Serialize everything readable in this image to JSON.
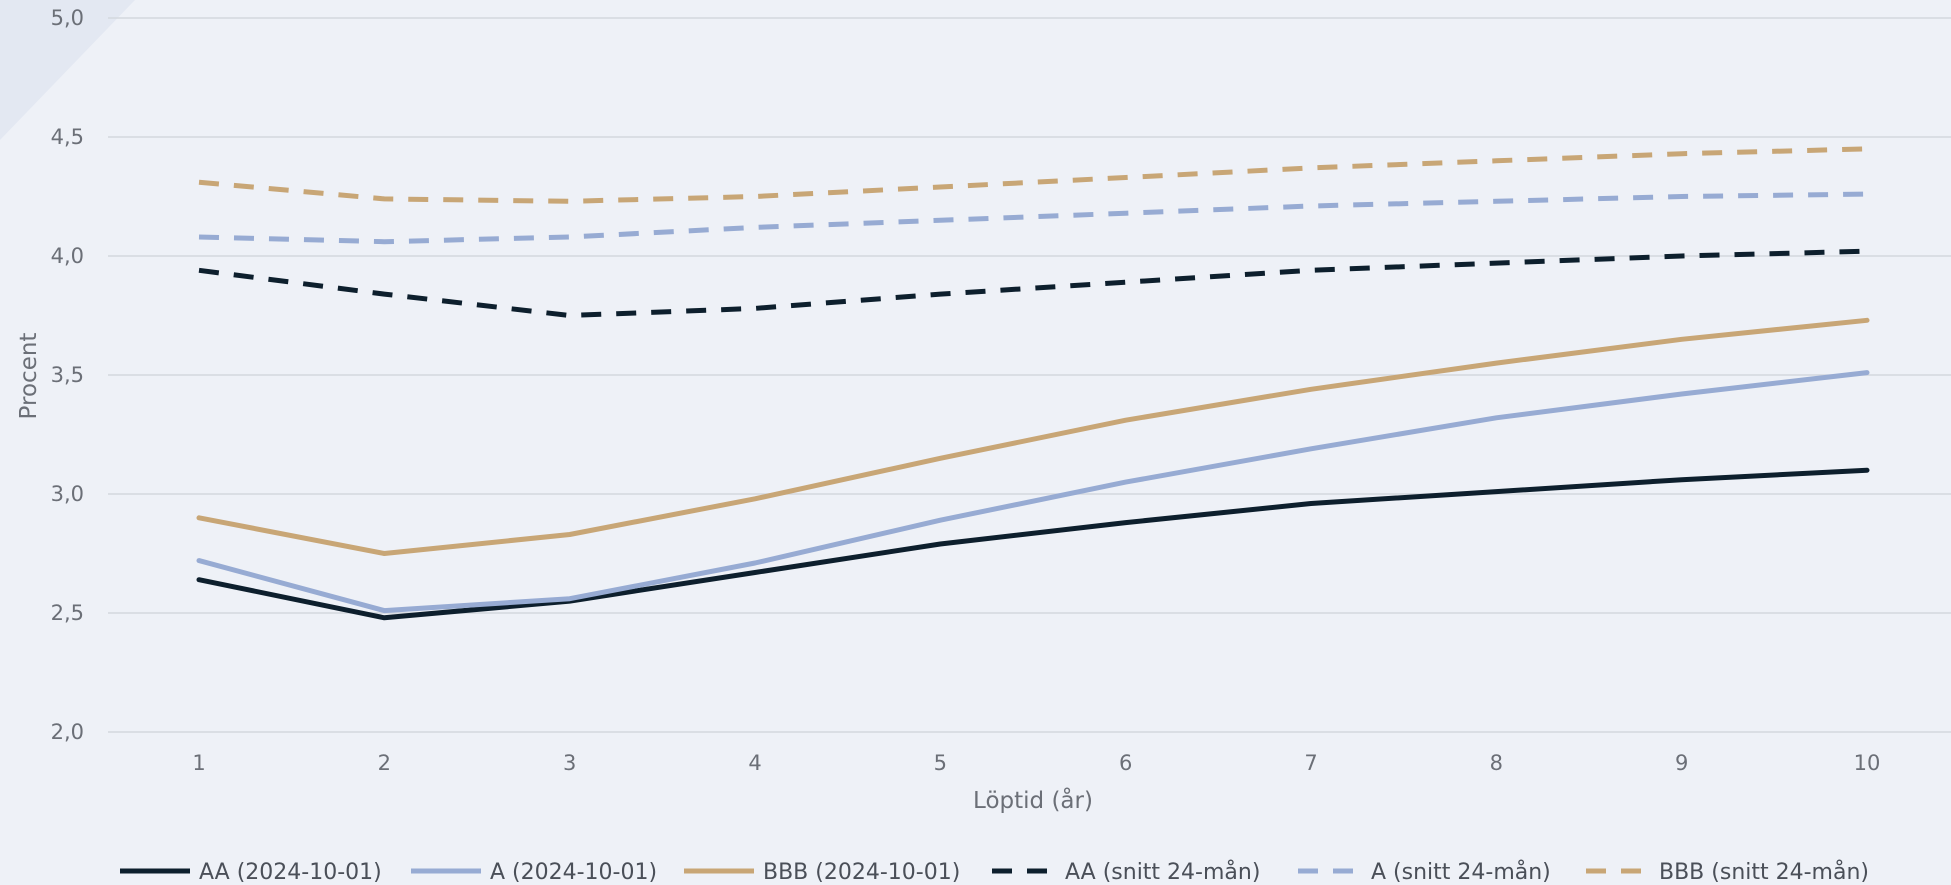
{
  "chart_data": {
    "type": "line",
    "title": "",
    "xlabel": "Löptid (år)",
    "ylabel": "Procent",
    "x": [
      1,
      2,
      3,
      4,
      5,
      6,
      7,
      8,
      9,
      10
    ],
    "x_tick_labels": [
      "1",
      "2",
      "3",
      "4",
      "5",
      "6",
      "7",
      "8",
      "9",
      "10"
    ],
    "ylim": [
      2.0,
      5.0
    ],
    "y_ticks": [
      2.0,
      2.5,
      3.0,
      3.5,
      4.0,
      4.5,
      5.0
    ],
    "y_tick_labels": [
      "2,0",
      "2,5",
      "3,0",
      "3,5",
      "4,0",
      "4,5",
      "5,0"
    ],
    "grid": "horizontal",
    "legend_position": "bottom",
    "series": [
      {
        "name": "AA (2024-10-01)",
        "color": "#0d1f2d",
        "style": "solid",
        "values": [
          2.64,
          2.48,
          2.55,
          2.67,
          2.79,
          2.88,
          2.96,
          3.01,
          3.06,
          3.1
        ]
      },
      {
        "name": "A (2024-10-01)",
        "color": "#97abd3",
        "style": "solid",
        "values": [
          2.72,
          2.51,
          2.56,
          2.71,
          2.89,
          3.05,
          3.19,
          3.32,
          3.42,
          3.51
        ]
      },
      {
        "name": "BBB (2024-10-01)",
        "color": "#c8a676",
        "style": "solid",
        "values": [
          2.9,
          2.75,
          2.83,
          2.98,
          3.15,
          3.31,
          3.44,
          3.55,
          3.65,
          3.73
        ]
      },
      {
        "name": "AA (snitt 24-mån)",
        "color": "#0d1f2d",
        "style": "dashed",
        "values": [
          3.94,
          3.84,
          3.75,
          3.78,
          3.84,
          3.89,
          3.94,
          3.97,
          4.0,
          4.02
        ]
      },
      {
        "name": "A (snitt 24-mån)",
        "color": "#97abd3",
        "style": "dashed",
        "values": [
          4.08,
          4.06,
          4.08,
          4.12,
          4.15,
          4.18,
          4.21,
          4.23,
          4.25,
          4.26
        ]
      },
      {
        "name": "BBB (snitt 24-mån)",
        "color": "#c8a676",
        "style": "dashed",
        "values": [
          4.31,
          4.24,
          4.23,
          4.25,
          4.29,
          4.33,
          4.37,
          4.4,
          4.43,
          4.45
        ]
      }
    ]
  }
}
